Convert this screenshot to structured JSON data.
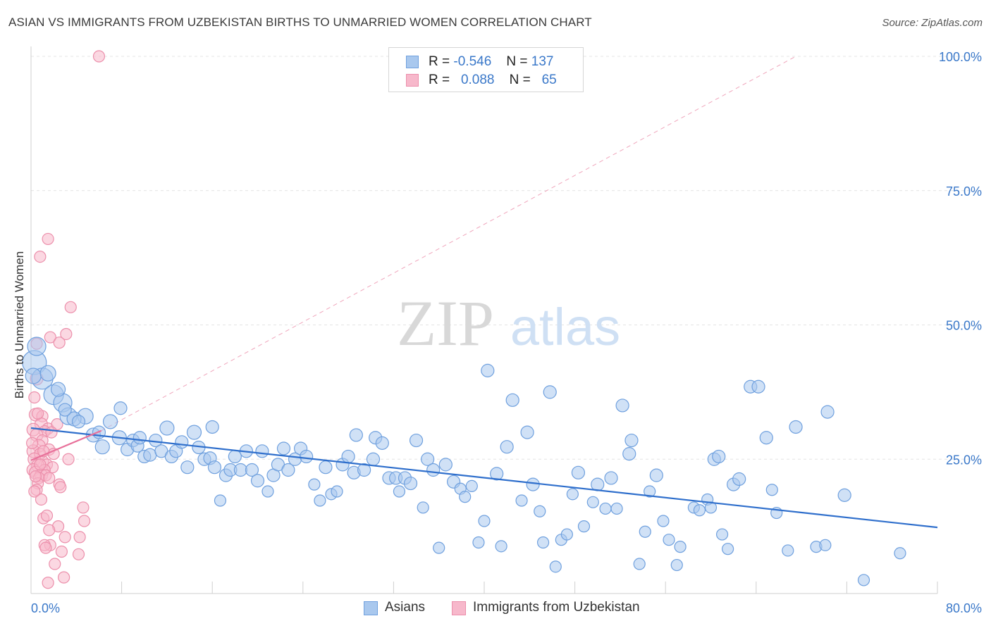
{
  "title": "ASIAN VS IMMIGRANTS FROM UZBEKISTAN BIRTHS TO UNMARRIED WOMEN CORRELATION CHART",
  "source": "Source: ZipAtlas.com",
  "watermark": {
    "zip": "ZIP",
    "atlas": "atlas"
  },
  "legend": {
    "rows": [
      {
        "r_label": "R =",
        "r_value": "-0.546",
        "n_label": "N =",
        "n_value": "137"
      },
      {
        "r_label": "R =",
        "r_value": "0.088",
        "n_label": "N =",
        "n_value": "65"
      }
    ]
  },
  "colors": {
    "asians_fill": "#a9c8ee",
    "asians_stroke": "#6fa0de",
    "asians_line": "#2f6fcc",
    "uzbek_fill": "#f7b8cb",
    "uzbek_stroke": "#ec8fab",
    "uzbek_line": "#e8709a",
    "axis_label": "#3a78c9",
    "grid": "#e4e4e4"
  },
  "chart_data": {
    "type": "scatter",
    "title": "ASIAN VS IMMIGRANTS FROM UZBEKISTAN BIRTHS TO UNMARRIED WOMEN CORRELATION CHART",
    "xlabel": "",
    "ylabel": "Births to Unmarried Women",
    "xlim": [
      0,
      80
    ],
    "ylim": [
      0,
      100
    ],
    "x_tick_labels": [
      {
        "value": 0,
        "label": "0.0%"
      },
      {
        "value": 80,
        "label": "80.0%"
      }
    ],
    "y_tick_labels": [
      {
        "value": 25,
        "label": "25.0%"
      },
      {
        "value": 50,
        "label": "50.0%"
      },
      {
        "value": 75,
        "label": "75.0%"
      },
      {
        "value": 100,
        "label": "100.0%"
      }
    ],
    "legend_position": "top-center",
    "grid": true,
    "series": [
      {
        "name": "Asians",
        "r": -0.546,
        "n": 137,
        "trend": {
          "x0": 0,
          "y0": 30.8,
          "x1": 80,
          "y1": 12.3
        },
        "points": [
          [
            0.3,
            43.0,
            14
          ],
          [
            0.5,
            46.0,
            10
          ],
          [
            1.0,
            40.0,
            12
          ],
          [
            2.0,
            37.0,
            11
          ],
          [
            2.8,
            35.5,
            10
          ],
          [
            3.3,
            33.0,
            9
          ],
          [
            4.8,
            33.0,
            8
          ],
          [
            3.8,
            32.5,
            7
          ],
          [
            5.5,
            29.5,
            7
          ],
          [
            6.3,
            27.3,
            7
          ],
          [
            7.0,
            32.0,
            7
          ],
          [
            7.8,
            29.0,
            7
          ],
          [
            7.9,
            34.5,
            6
          ],
          [
            8.5,
            26.8,
            6
          ],
          [
            9.0,
            28.5,
            6
          ],
          [
            9.4,
            27.5,
            6
          ],
          [
            10.0,
            25.5,
            6
          ],
          [
            10.5,
            25.8,
            6
          ],
          [
            11.0,
            28.5,
            6
          ],
          [
            11.5,
            26.5,
            6
          ],
          [
            12.0,
            30.8,
            7
          ],
          [
            12.4,
            25.5,
            6
          ],
          [
            12.8,
            26.5,
            6
          ],
          [
            13.3,
            28.2,
            6
          ],
          [
            13.8,
            23.5,
            6
          ],
          [
            14.4,
            30.0,
            7
          ],
          [
            14.8,
            27.2,
            6
          ],
          [
            15.3,
            25.0,
            6
          ],
          [
            15.8,
            25.2,
            6
          ],
          [
            16.2,
            23.5,
            6
          ],
          [
            16.7,
            17.3,
            5
          ],
          [
            17.2,
            22.0,
            6
          ],
          [
            17.6,
            23.0,
            6
          ],
          [
            18.0,
            25.5,
            6
          ],
          [
            18.5,
            23.0,
            6
          ],
          [
            19.0,
            26.5,
            6
          ],
          [
            19.5,
            23.0,
            6
          ],
          [
            20.0,
            21.0,
            6
          ],
          [
            20.4,
            26.5,
            6
          ],
          [
            20.9,
            19.0,
            5
          ],
          [
            21.4,
            22.0,
            6
          ],
          [
            21.8,
            24.0,
            6
          ],
          [
            22.3,
            27.0,
            6
          ],
          [
            22.7,
            23.0,
            6
          ],
          [
            23.3,
            25.0,
            6
          ],
          [
            23.8,
            27.0,
            6
          ],
          [
            24.3,
            25.5,
            6
          ],
          [
            25.0,
            20.3,
            5
          ],
          [
            25.5,
            17.3,
            5
          ],
          [
            26.0,
            23.5,
            6
          ],
          [
            26.5,
            18.5,
            5
          ],
          [
            27.0,
            19.0,
            5
          ],
          [
            27.5,
            24.0,
            6
          ],
          [
            28.0,
            25.5,
            6
          ],
          [
            28.5,
            22.5,
            6
          ],
          [
            28.7,
            29.5,
            6
          ],
          [
            29.4,
            23.0,
            6
          ],
          [
            30.2,
            25.0,
            6
          ],
          [
            30.4,
            29.0,
            6
          ],
          [
            31.0,
            28.0,
            6
          ],
          [
            31.6,
            21.5,
            6
          ],
          [
            32.2,
            21.5,
            6
          ],
          [
            32.5,
            19.0,
            5
          ],
          [
            33.0,
            21.5,
            6
          ],
          [
            33.5,
            20.5,
            6
          ],
          [
            34.0,
            28.5,
            6
          ],
          [
            34.6,
            16.0,
            5
          ],
          [
            35.0,
            25.0,
            6
          ],
          [
            35.5,
            23.0,
            6
          ],
          [
            36.0,
            8.5,
            5
          ],
          [
            36.6,
            24.0,
            6
          ],
          [
            37.3,
            20.8,
            6
          ],
          [
            37.9,
            19.5,
            5
          ],
          [
            38.3,
            18.0,
            5
          ],
          [
            38.9,
            20.0,
            5
          ],
          [
            39.5,
            9.5,
            5
          ],
          [
            40.0,
            13.5,
            5
          ],
          [
            40.3,
            41.5,
            6
          ],
          [
            41.1,
            22.3,
            6
          ],
          [
            41.5,
            8.8,
            5
          ],
          [
            42.0,
            27.3,
            6
          ],
          [
            42.5,
            36.0,
            6
          ],
          [
            43.3,
            17.3,
            5
          ],
          [
            43.8,
            30.0,
            6
          ],
          [
            44.3,
            20.3,
            6
          ],
          [
            44.9,
            15.3,
            5
          ],
          [
            45.2,
            9.5,
            5
          ],
          [
            45.8,
            37.5,
            6
          ],
          [
            46.3,
            5.0,
            5
          ],
          [
            46.8,
            10.0,
            5
          ],
          [
            47.3,
            11.0,
            5
          ],
          [
            47.8,
            18.5,
            5
          ],
          [
            48.3,
            22.5,
            6
          ],
          [
            48.8,
            12.5,
            5
          ],
          [
            49.6,
            17.0,
            5
          ],
          [
            50.0,
            20.3,
            6
          ],
          [
            50.7,
            15.8,
            5
          ],
          [
            51.2,
            21.5,
            6
          ],
          [
            51.7,
            15.8,
            5
          ],
          [
            52.2,
            35.0,
            6
          ],
          [
            52.8,
            26.0,
            6
          ],
          [
            53.0,
            28.5,
            6
          ],
          [
            53.7,
            5.5,
            5
          ],
          [
            54.2,
            11.5,
            5
          ],
          [
            54.6,
            19.0,
            5
          ],
          [
            55.2,
            22.0,
            6
          ],
          [
            55.8,
            13.5,
            5
          ],
          [
            56.3,
            10.0,
            5
          ],
          [
            57.0,
            5.3,
            5
          ],
          [
            57.3,
            8.7,
            5
          ],
          [
            58.5,
            16.0,
            5
          ],
          [
            59.0,
            15.5,
            5
          ],
          [
            59.7,
            17.5,
            5
          ],
          [
            60.0,
            16.0,
            5
          ],
          [
            60.3,
            25.0,
            6
          ],
          [
            60.7,
            25.5,
            6
          ],
          [
            61.0,
            11.0,
            5
          ],
          [
            61.5,
            8.3,
            5
          ],
          [
            62.0,
            20.3,
            6
          ],
          [
            62.5,
            21.3,
            6
          ],
          [
            63.5,
            38.5,
            6
          ],
          [
            64.2,
            38.5,
            6
          ],
          [
            64.9,
            29.0,
            6
          ],
          [
            65.4,
            19.3,
            5
          ],
          [
            65.8,
            15.0,
            5
          ],
          [
            66.8,
            8.0,
            5
          ],
          [
            67.5,
            31.0,
            6
          ],
          [
            69.3,
            8.7,
            5
          ],
          [
            70.3,
            33.8,
            6
          ],
          [
            70.1,
            9.0,
            5
          ],
          [
            71.8,
            18.3,
            6
          ],
          [
            73.5,
            2.5,
            5
          ],
          [
            76.7,
            7.5,
            5
          ],
          [
            0.2,
            40.5,
            8
          ],
          [
            1.5,
            41.0,
            8
          ],
          [
            2.4,
            38.0,
            7
          ],
          [
            3.0,
            34.2,
            6
          ],
          [
            4.2,
            32.0,
            6
          ],
          [
            6.0,
            30.0,
            6
          ],
          [
            9.6,
            29.0,
            6
          ],
          [
            16.0,
            31.0,
            6
          ]
        ]
      },
      {
        "name": "Immigrants from Uzbekistan",
        "r": 0.088,
        "n": 65,
        "trend": {
          "x0": 0,
          "y0": 24.8,
          "x1": 6.2,
          "y1": 30.3
        },
        "points": [
          [
            6.0,
            100.0,
            5
          ],
          [
            1.5,
            66.0,
            5
          ],
          [
            0.8,
            62.7,
            5
          ],
          [
            3.5,
            53.3,
            5
          ],
          [
            3.1,
            48.3,
            5
          ],
          [
            1.7,
            47.7,
            5
          ],
          [
            2.5,
            46.7,
            5
          ],
          [
            0.5,
            46.5,
            5
          ],
          [
            0.5,
            40.0,
            6
          ],
          [
            0.3,
            36.5,
            5
          ],
          [
            0.4,
            33.3,
            6
          ],
          [
            1.0,
            33.0,
            5
          ],
          [
            0.9,
            31.5,
            6
          ],
          [
            1.5,
            30.7,
            5
          ],
          [
            2.3,
            31.5,
            5
          ],
          [
            0.2,
            30.5,
            6
          ],
          [
            1.2,
            30.2,
            5
          ],
          [
            0.5,
            29.5,
            6
          ],
          [
            1.0,
            28.5,
            5
          ],
          [
            0.7,
            27.5,
            6
          ],
          [
            1.6,
            26.8,
            5
          ],
          [
            0.2,
            26.5,
            6
          ],
          [
            0.8,
            26.0,
            5
          ],
          [
            3.3,
            25.0,
            5
          ],
          [
            0.3,
            25.0,
            6
          ],
          [
            1.0,
            24.5,
            6
          ],
          [
            1.4,
            24.0,
            5
          ],
          [
            0.6,
            23.8,
            6
          ],
          [
            1.9,
            23.5,
            5
          ],
          [
            0.2,
            23.0,
            6
          ],
          [
            1.2,
            23.0,
            5
          ],
          [
            0.4,
            22.5,
            6
          ],
          [
            0.9,
            22.0,
            6
          ],
          [
            1.3,
            22.0,
            5
          ],
          [
            0.7,
            21.5,
            5
          ],
          [
            1.6,
            21.5,
            5
          ],
          [
            2.5,
            20.3,
            5
          ],
          [
            2.6,
            19.8,
            5
          ],
          [
            0.6,
            20.5,
            5
          ],
          [
            0.5,
            19.3,
            5
          ],
          [
            0.9,
            17.5,
            5
          ],
          [
            4.6,
            16.0,
            5
          ],
          [
            1.1,
            14.0,
            5
          ],
          [
            4.7,
            13.5,
            5
          ],
          [
            2.4,
            12.5,
            5
          ],
          [
            1.6,
            11.8,
            5
          ],
          [
            3.0,
            10.5,
            5
          ],
          [
            4.3,
            10.5,
            5
          ],
          [
            1.7,
            9.0,
            5
          ],
          [
            1.2,
            9.0,
            5
          ],
          [
            1.3,
            8.5,
            5
          ],
          [
            2.7,
            7.8,
            5
          ],
          [
            4.2,
            7.3,
            5
          ],
          [
            2.1,
            5.5,
            5
          ],
          [
            2.9,
            3.0,
            5
          ],
          [
            1.5,
            2.0,
            5
          ],
          [
            0.1,
            28.0,
            5
          ],
          [
            0.4,
            21.8,
            5
          ],
          [
            1.8,
            30.0,
            5
          ],
          [
            0.6,
            33.5,
            5
          ],
          [
            2.0,
            26.0,
            5
          ],
          [
            1.1,
            26.5,
            5
          ],
          [
            0.3,
            19.0,
            5
          ],
          [
            1.4,
            14.5,
            5
          ],
          [
            0.8,
            24.0,
            5
          ]
        ]
      }
    ],
    "extra_reference_line": {
      "style": "dashed",
      "x0": 6.2,
      "y0": 30.3,
      "x1": 67.5,
      "y1": 100.0
    }
  },
  "bottom_legend": [
    {
      "label": "Asians"
    },
    {
      "label": "Immigrants from Uzbekistan"
    }
  ]
}
